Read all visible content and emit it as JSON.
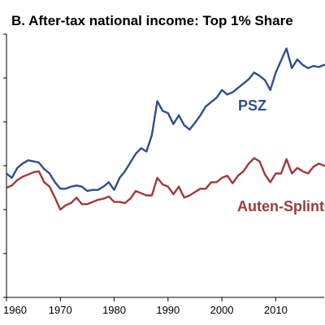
{
  "chart_data": {
    "type": "line",
    "title": "B. After-tax national income: Top 1% Share",
    "xlabel": "",
    "ylabel": "",
    "xlim": [
      1960,
      2019
    ],
    "ylim": [
      0.02,
      0.14
    ],
    "x_ticks": [
      1960,
      1970,
      1980,
      1990,
      2000,
      2010
    ],
    "y_ticks": [
      0.02,
      0.04,
      0.06,
      0.08,
      0.1,
      0.12,
      0.14
    ],
    "grid": false,
    "legend": "none",
    "series": [
      {
        "name": "PSZ",
        "color": "#2E4F8C",
        "x": [
          1960,
          1961,
          1962,
          1963,
          1964,
          1965,
          1966,
          1967,
          1968,
          1969,
          1970,
          1971,
          1972,
          1973,
          1974,
          1975,
          1976,
          1977,
          1978,
          1979,
          1980,
          1981,
          1982,
          1983,
          1984,
          1985,
          1986,
          1987,
          1988,
          1989,
          1990,
          1991,
          1992,
          1993,
          1994,
          1995,
          1996,
          1997,
          1998,
          1999,
          2000,
          2001,
          2002,
          2003,
          2004,
          2005,
          2006,
          2007,
          2008,
          2009,
          2010,
          2011,
          2012,
          2013,
          2014,
          2015,
          2016,
          2017,
          2018,
          2019
        ],
        "values": [
          0.0765,
          0.0745,
          0.079,
          0.081,
          0.0825,
          0.082,
          0.0815,
          0.0785,
          0.0765,
          0.0725,
          0.0695,
          0.0695,
          0.0705,
          0.071,
          0.0705,
          0.0685,
          0.069,
          0.069,
          0.0705,
          0.0725,
          0.069,
          0.0745,
          0.0775,
          0.0815,
          0.0855,
          0.088,
          0.0865,
          0.094,
          0.1095,
          0.105,
          0.104,
          0.099,
          0.103,
          0.0985,
          0.0965,
          0.0995,
          0.103,
          0.107,
          0.109,
          0.111,
          0.1145,
          0.1125,
          0.1135,
          0.1155,
          0.1175,
          0.1195,
          0.1225,
          0.121,
          0.119,
          0.1145,
          0.1225,
          0.128,
          0.1335,
          0.1245,
          0.1285,
          0.126,
          0.1245,
          0.1255,
          0.125,
          0.126
        ]
      },
      {
        "name": "Auten-Splinter",
        "color": "#9E3A38",
        "x": [
          1960,
          1961,
          1962,
          1963,
          1964,
          1965,
          1966,
          1967,
          1968,
          1969,
          1970,
          1971,
          1972,
          1973,
          1974,
          1975,
          1976,
          1977,
          1978,
          1979,
          1980,
          1981,
          1982,
          1983,
          1984,
          1985,
          1986,
          1987,
          1988,
          1989,
          1990,
          1991,
          1992,
          1993,
          1994,
          1995,
          1996,
          1997,
          1998,
          1999,
          2000,
          2001,
          2002,
          2003,
          2004,
          2005,
          2006,
          2007,
          2008,
          2009,
          2010,
          2011,
          2012,
          2013,
          2014,
          2015,
          2016,
          2017,
          2018,
          2019
        ],
        "values": [
          0.07,
          0.071,
          0.0735,
          0.075,
          0.076,
          0.077,
          0.0775,
          0.0725,
          0.0705,
          0.0655,
          0.06,
          0.062,
          0.063,
          0.0655,
          0.0625,
          0.0625,
          0.0635,
          0.0645,
          0.065,
          0.066,
          0.0635,
          0.0635,
          0.063,
          0.065,
          0.0685,
          0.0675,
          0.0665,
          0.0665,
          0.0745,
          0.0715,
          0.0705,
          0.067,
          0.0705,
          0.0655,
          0.0665,
          0.068,
          0.0695,
          0.0695,
          0.0725,
          0.0725,
          0.0745,
          0.0755,
          0.072,
          0.0755,
          0.0775,
          0.081,
          0.0835,
          0.082,
          0.076,
          0.0725,
          0.0765,
          0.0765,
          0.083,
          0.0765,
          0.079,
          0.0775,
          0.0765,
          0.0795,
          0.081,
          0.08
        ]
      }
    ]
  }
}
